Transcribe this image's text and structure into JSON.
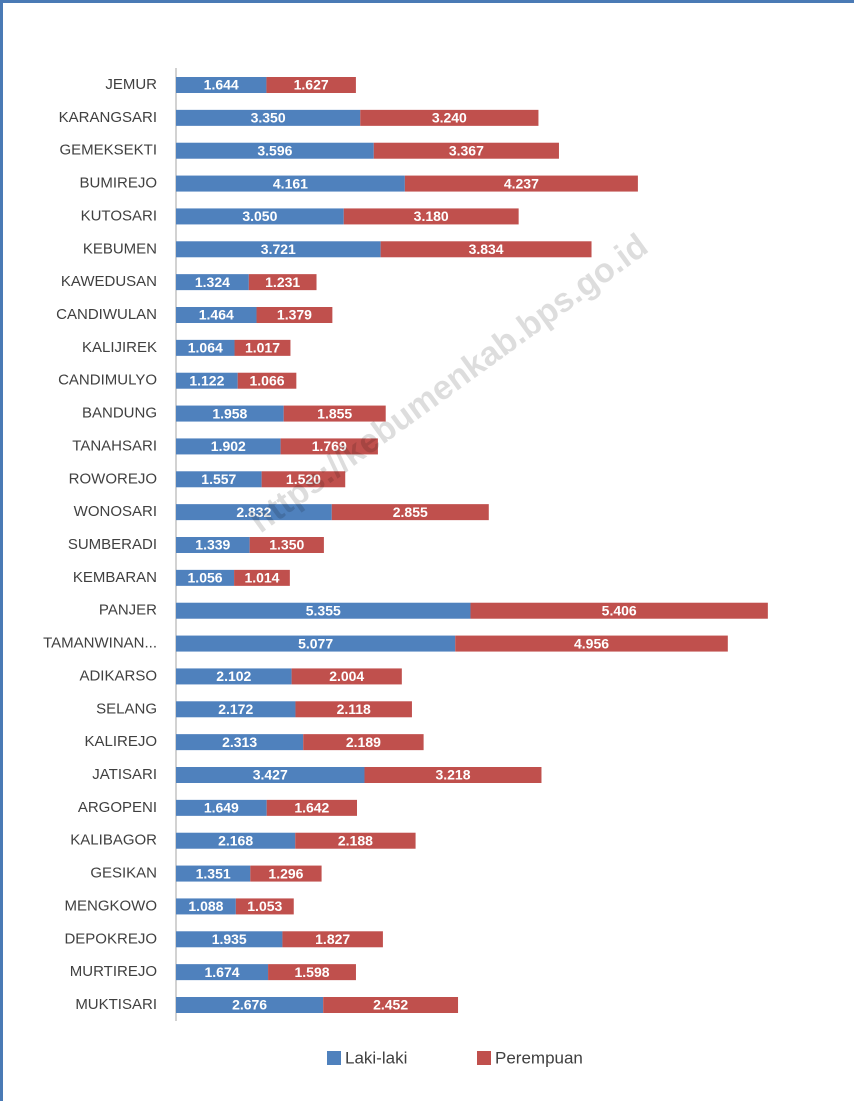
{
  "chart_data": {
    "type": "bar",
    "orientation": "horizontal",
    "stacked": true,
    "watermark": "https://kebumenkab.bps.go.id",
    "categories": [
      "JEMUR",
      "KARANGSARI",
      "GEMEKSEKTI",
      "BUMIREJO",
      "KUTOSARI",
      "KEBUMEN",
      "KAWEDUSAN",
      "CANDIWULAN",
      "KALIJIREK",
      "CANDIMULYO",
      "BANDUNG",
      "TANAHSARI",
      "ROWOREJO",
      "WONOSARI",
      "SUMBERADI",
      "KEMBARAN",
      "PANJER",
      "TAMANWINAN...",
      "ADIKARSO",
      "SELANG",
      "KALIREJO",
      "JATISARI",
      "ARGOPENI",
      "KALIBAGOR",
      "GESIKAN",
      "MENGKOWO",
      "DEPOKREJO",
      "MURTIREJO",
      "MUKTISARI"
    ],
    "series": [
      {
        "name": "Laki-laki",
        "color": "#4f81bd",
        "values": [
          1644,
          3350,
          3596,
          4161,
          3050,
          3721,
          1324,
          1464,
          1064,
          1122,
          1958,
          1902,
          1557,
          2832,
          1339,
          1056,
          5355,
          5077,
          2102,
          2172,
          2313,
          3427,
          1649,
          2168,
          1351,
          1088,
          1935,
          1674,
          2676
        ],
        "value_labels": [
          "1.644",
          "3.350",
          "3.596",
          "4.161",
          "3.050",
          "3.721",
          "1.324",
          "1.464",
          "1.064",
          "1.122",
          "1.958",
          "1.902",
          "1.557",
          "2.832",
          "1.339",
          "1.056",
          "5.355",
          "5.077",
          "2.102",
          "2.172",
          "2.313",
          "3.427",
          "1.649",
          "2.168",
          "1.351",
          "1.088",
          "1.935",
          "1.674",
          "2.676"
        ]
      },
      {
        "name": "Perempuan",
        "color": "#c0504d",
        "values": [
          1627,
          3240,
          3367,
          4237,
          3180,
          3834,
          1231,
          1379,
          1017,
          1066,
          1855,
          1769,
          1520,
          2855,
          1350,
          1014,
          5406,
          4956,
          2004,
          2118,
          2189,
          3218,
          1642,
          2188,
          1296,
          1053,
          1827,
          1598,
          2452
        ],
        "value_labels": [
          "1.627",
          "3.240",
          "3.367",
          "4.237",
          "3.180",
          "3.834",
          "1.231",
          "1.379",
          "1.017",
          "1.066",
          "1.855",
          "1.769",
          "1.520",
          "2.855",
          "1.350",
          "1.014",
          "5.406",
          "4.956",
          "2.004",
          "2.118",
          "2.189",
          "3.218",
          "1.642",
          "2.188",
          "1.296",
          "1.053",
          "1.827",
          "1.598",
          "2.452"
        ]
      }
    ],
    "legend": "bottom"
  }
}
